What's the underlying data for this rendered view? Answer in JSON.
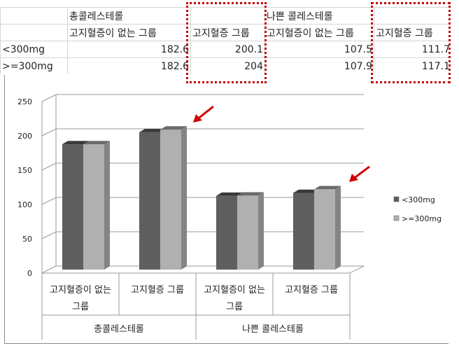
{
  "table": {
    "header1": [
      "",
      "총콜레스테롤",
      "",
      "나쁜 콜레스테롤",
      ""
    ],
    "header2": [
      "",
      "고지혈증이 없는 그룹",
      "고지혈증 그룹",
      "고지혈증이 없는 그룹",
      "고지혈증 그룹"
    ],
    "rows": [
      [
        "<300mg",
        "182.6",
        "200.1",
        "107.5",
        "111.7"
      ],
      [
        ">=300mg",
        "182.6",
        "204",
        "107.9",
        "117.1"
      ]
    ]
  },
  "chart_data": {
    "type": "bar",
    "style": "3d-clustered-column",
    "categories": [
      "고지혈증이 없는 그룹",
      "고지혈증 그룹",
      "고지혈증이 없는 그룹",
      "고지혈증 그룹"
    ],
    "category_groups": [
      "총콜레스테롤",
      "나쁜 콜레스테롤"
    ],
    "series": [
      {
        "name": "<300mg",
        "values": [
          182.6,
          200.1,
          107.5,
          111.7
        ],
        "color": "#5f5f5f"
      },
      {
        "name": ">=300mg",
        "values": [
          182.6,
          204,
          107.9,
          117.1
        ],
        "color": "#b0b0b0"
      }
    ],
    "yticks": [
      "0",
      "50",
      "100",
      "150",
      "200",
      "250"
    ],
    "ylim": [
      0,
      250
    ],
    "grid": true,
    "legend": "right",
    "annotations": "red arrows pointing to 고지혈증 그룹 bars; red dotted boxes around 고지혈증 그룹 columns",
    "accent_color": "#d00000"
  }
}
